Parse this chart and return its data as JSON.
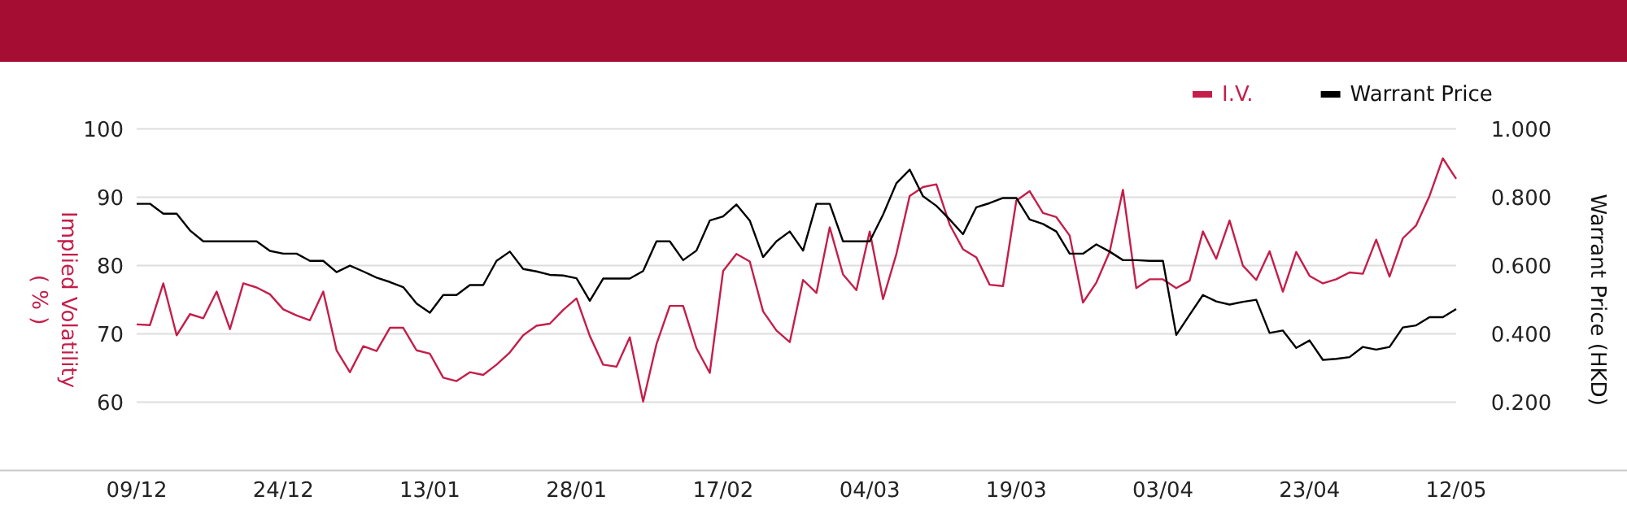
{
  "chart_data": {
    "type": "line",
    "ylabel": "Implied Volatility\n( % )",
    "y2label": "Warrant Price (HKD)",
    "categories": [
      "09/12",
      null,
      null,
      null,
      null,
      null,
      null,
      null,
      null,
      null,
      null,
      "24/12",
      null,
      null,
      null,
      null,
      null,
      null,
      null,
      null,
      null,
      null,
      "13/01",
      null,
      null,
      null,
      null,
      null,
      null,
      null,
      null,
      null,
      null,
      "28/01",
      null,
      null,
      null,
      null,
      null,
      null,
      null,
      null,
      null,
      null,
      "17/02",
      null,
      null,
      null,
      null,
      null,
      null,
      null,
      null,
      null,
      null,
      "04/03",
      null,
      null,
      null,
      null,
      null,
      null,
      null,
      null,
      null,
      null,
      "19/03",
      null,
      null,
      null,
      null,
      null,
      null,
      null,
      null,
      null,
      null,
      "03/04",
      null,
      null,
      null,
      null,
      null,
      null,
      null,
      null,
      null,
      null,
      "23/04",
      null,
      null,
      null,
      null,
      null,
      null,
      null,
      null,
      null,
      null,
      "12/05"
    ],
    "series": [
      {
        "name": "I.V.",
        "color": "#c41e4a",
        "values": [
          71.4,
          71.3,
          77.4,
          69.8,
          72.9,
          72.3,
          76.2,
          70.7,
          77.4,
          76.8,
          75.8,
          73.6,
          72.7,
          72.0,
          76.2,
          67.6,
          64.4,
          68.2,
          67.5,
          70.9,
          70.9,
          67.6,
          67.1,
          63.6,
          63.1,
          64.4,
          64.0,
          65.5,
          67.3,
          69.8,
          71.2,
          71.5,
          73.5,
          75.2,
          69.7,
          65.5,
          65.2,
          69.5,
          60.1,
          68.5,
          74.1,
          74.1,
          67.9,
          64.3,
          79.2,
          81.7,
          80.6,
          73.3,
          70.5,
          68.8,
          77.9,
          76.0,
          85.6,
          78.7,
          76.4,
          85.0,
          75.1,
          81.7,
          90.2,
          91.5,
          91.9,
          86.0,
          82.4,
          81.2,
          77.2,
          77.0,
          89.5,
          90.9,
          87.7,
          87.1,
          84.4,
          74.6,
          77.5,
          82.0,
          91.1,
          76.7,
          78.0,
          78.0,
          76.7,
          77.8,
          85.0,
          81.0,
          86.6,
          80.0,
          77.9,
          82.1,
          76.2,
          82.0,
          78.5,
          77.4,
          78.0,
          79.0,
          78.8,
          83.8,
          78.4,
          84.0,
          85.9,
          90.2,
          95.7,
          92.7
        ]
      },
      {
        "name": "Warrant Price",
        "color": "#000000",
        "axis": "y2",
        "values": [
          0.781,
          0.781,
          0.752,
          0.752,
          0.703,
          0.671,
          0.671,
          0.671,
          0.671,
          0.671,
          0.643,
          0.635,
          0.635,
          0.614,
          0.614,
          0.581,
          0.6,
          0.583,
          0.565,
          0.552,
          0.537,
          0.489,
          0.462,
          0.514,
          0.514,
          0.543,
          0.543,
          0.614,
          0.641,
          0.59,
          0.583,
          0.573,
          0.571,
          0.563,
          0.497,
          0.562,
          0.562,
          0.562,
          0.584,
          0.671,
          0.671,
          0.616,
          0.644,
          0.732,
          0.744,
          0.779,
          0.732,
          0.625,
          0.671,
          0.7,
          0.644,
          0.781,
          0.781,
          0.671,
          0.671,
          0.671,
          0.749,
          0.841,
          0.881,
          0.803,
          0.775,
          0.735,
          0.692,
          0.771,
          0.783,
          0.798,
          0.798,
          0.735,
          0.722,
          0.7,
          0.635,
          0.635,
          0.662,
          0.641,
          0.616,
          0.616,
          0.614,
          0.614,
          0.397,
          0.456,
          0.514,
          0.495,
          0.486,
          0.494,
          0.5,
          0.403,
          0.41,
          0.359,
          0.381,
          0.324,
          0.327,
          0.332,
          0.362,
          0.354,
          0.362,
          0.419,
          0.425,
          0.449,
          0.449,
          0.473
        ]
      }
    ],
    "ylim": [
      50,
      100
    ],
    "yticks": [
      60,
      70,
      80,
      90,
      100
    ],
    "y2lim": [
      0,
      1
    ],
    "y2ticks": [
      {
        "value": 0.2,
        "label": "0.200"
      },
      {
        "value": 0.4,
        "label": "0.400"
      },
      {
        "value": 0.6,
        "label": "0.600"
      },
      {
        "value": 0.8,
        "label": "0.800"
      },
      {
        "value": 1,
        "label": "1.000"
      }
    ],
    "grid": "y",
    "legend": "top right",
    "marker": "none",
    "line_style": "solid"
  }
}
